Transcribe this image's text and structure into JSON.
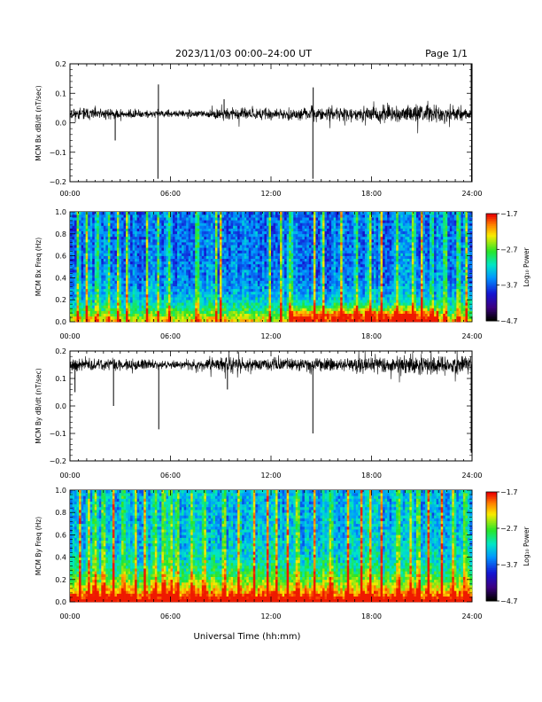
{
  "header": {
    "title": "2023/11/03  00:00–24:00 UT",
    "page": "Page 1/1"
  },
  "xlabel": "Universal Time (hh:mm)",
  "chart_data": [
    {
      "type": "line",
      "ylabel": "MCM Bx dB/dt (nT/sec)",
      "x_ticks": [
        "00:00",
        "06:00",
        "12:00",
        "18:00",
        "24:00"
      ],
      "xlim": [
        0,
        24
      ],
      "ylim": [
        -0.2,
        0.2
      ],
      "y_ticks": [
        "0.2",
        "0.1",
        "0.0",
        "−0.1",
        "−0.2"
      ],
      "baseline": 0.03,
      "noise_profile": [
        {
          "t": 0,
          "amp": 0.02
        },
        {
          "t": 3,
          "amp": 0.02
        },
        {
          "t": 5,
          "amp": 0.012
        },
        {
          "t": 8,
          "amp": 0.012
        },
        {
          "t": 9,
          "amp": 0.02
        },
        {
          "t": 13,
          "amp": 0.02
        },
        {
          "t": 16,
          "amp": 0.025
        },
        {
          "t": 21,
          "amp": 0.032
        },
        {
          "t": 24,
          "amp": 0.02
        }
      ],
      "spikes": [
        {
          "t": 5.25,
          "y": -0.19
        },
        {
          "t": 5.28,
          "y": 0.13
        },
        {
          "t": 14.5,
          "y": -0.19
        },
        {
          "t": 14.52,
          "y": 0.12
        },
        {
          "t": 23.95,
          "y": 0.2
        },
        {
          "t": 23.97,
          "y": -0.2
        },
        {
          "t": 2.7,
          "y": -0.06
        },
        {
          "t": 9.2,
          "y": 0.08
        }
      ],
      "seed": 11
    },
    {
      "type": "heatmap",
      "ylabel": "MCM Bx Freq (Hz)",
      "x_ticks": [
        "00:00",
        "06:00",
        "12:00",
        "18:00",
        "24:00"
      ],
      "xlim": [
        0,
        24
      ],
      "ylim": [
        0,
        1.0
      ],
      "y_ticks": [
        "1.0",
        "0.8",
        "0.6",
        "0.4",
        "0.2",
        "0.0"
      ],
      "colorbar": {
        "label": "Log₁₀ Power",
        "ticks": [
          "−1.7",
          "−2.7",
          "−3.7",
          "−4.7"
        ],
        "range": [
          -4.7,
          -1.7
        ]
      },
      "bright_times": [
        0.5,
        1.0,
        1.6,
        2.3,
        2.9,
        3.4,
        4.6,
        5.3,
        5.9,
        7.6,
        8.7,
        9.0,
        11.9,
        12.6,
        13.2,
        14.6,
        15.1,
        16.2,
        17.1,
        17.9,
        18.6,
        19.5,
        20.5,
        21.0,
        21.6,
        22.4,
        23.2,
        23.7
      ],
      "seed": 23
    },
    {
      "type": "line",
      "ylabel": "MCM By dB/dt (nT/sec)",
      "x_ticks": [
        "00:00",
        "06:00",
        "12:00",
        "18:00",
        "24:00"
      ],
      "xlim": [
        0,
        24
      ],
      "ylim": [
        -0.2,
        0.2
      ],
      "y_ticks": [
        "0.2",
        "0.1",
        "0.0",
        "−0.1",
        "−0.2"
      ],
      "baseline": 0.15,
      "noise_profile": [
        {
          "t": 0,
          "amp": 0.025
        },
        {
          "t": 4,
          "amp": 0.022
        },
        {
          "t": 6,
          "amp": 0.015
        },
        {
          "t": 8,
          "amp": 0.02
        },
        {
          "t": 10,
          "amp": 0.03
        },
        {
          "t": 14,
          "amp": 0.025
        },
        {
          "t": 18,
          "amp": 0.03
        },
        {
          "t": 21,
          "amp": 0.035
        },
        {
          "t": 24,
          "amp": 0.03
        }
      ],
      "spikes": [
        {
          "t": 5.3,
          "y": -0.085
        },
        {
          "t": 14.5,
          "y": -0.1
        },
        {
          "t": 23.95,
          "y": -0.17
        },
        {
          "t": 2.6,
          "y": 0.0
        },
        {
          "t": 9.4,
          "y": 0.06
        },
        {
          "t": 0.3,
          "y": 0.05
        }
      ],
      "seed": 37
    },
    {
      "type": "heatmap",
      "ylabel": "MCM By Freq (Hz)",
      "x_ticks": [
        "00:00",
        "06:00",
        "12:00",
        "18:00",
        "24:00"
      ],
      "xlim": [
        0,
        24
      ],
      "ylim": [
        0,
        1.0
      ],
      "y_ticks": [
        "1.0",
        "0.8",
        "0.6",
        "0.4",
        "0.2",
        "0.0"
      ],
      "colorbar": {
        "label": "Log₁₀ Power",
        "ticks": [
          "−1.7",
          "−2.7",
          "−3.7",
          "−4.7"
        ],
        "range": [
          -4.7,
          -1.7
        ]
      },
      "bright_times": [
        0.6,
        1.1,
        1.5,
        2.0,
        2.6,
        3.2,
        3.9,
        4.5,
        5.1,
        5.6,
        6.0,
        6.4,
        7.3,
        8.0,
        9.2,
        10.1,
        11.0,
        11.8,
        12.3,
        13.0,
        13.6,
        14.6,
        15.6,
        16.6,
        17.4,
        17.9,
        18.6,
        19.6,
        20.3,
        20.8,
        21.4,
        22.2,
        22.9,
        23.6
      ],
      "seed": 51
    }
  ]
}
